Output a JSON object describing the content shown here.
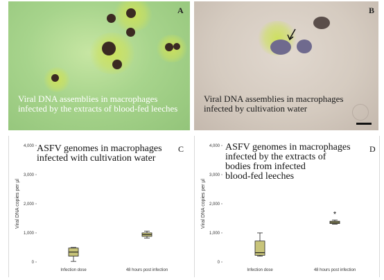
{
  "colors": {
    "box_fill": "#c8c47a",
    "cell_dark": "#3b2a22",
    "halo": "#d4e36a",
    "panel_a_bg": "#a7d48c",
    "panel_b_bg": "#d5cbc0"
  },
  "panels": {
    "A": {
      "letter": "A",
      "caption": "Viral DNA assemblies in macrophages\ninfected by the extracts of blood-fed leeches"
    },
    "B": {
      "letter": "B",
      "caption": "Viral DNA assemblies in macrophages\ninfected by cultivation water"
    }
  },
  "chart_data": [
    {
      "type": "box",
      "panel": "C",
      "letter": "C",
      "title": "ASFV genomes in macrophages\ninfected with cultivation water",
      "ylabel": "Viral DNA copies per µl",
      "ylim": [
        0,
        4000
      ],
      "yticks": [
        "0",
        "1,000",
        "2,000",
        "3,000",
        "4,000"
      ],
      "categories": [
        "Infection dose",
        "48 hours post infection"
      ],
      "boxes": [
        {
          "min": 20,
          "q1": 200,
          "median": 340,
          "q3": 480,
          "max": 500,
          "label": ""
        },
        {
          "min": 820,
          "q1": 880,
          "median": 940,
          "q3": 1000,
          "max": 1060,
          "label": ""
        }
      ]
    },
    {
      "type": "box",
      "panel": "D",
      "letter": "D",
      "title": "ASFV genomes in macrophages\ninfected by the extracts of\nbodies from infected\nblood-fed leeches",
      "ylabel": "Viral DNA copies per µl",
      "ylim": [
        0,
        4000
      ],
      "yticks": [
        "0",
        "1,000",
        "2,000",
        "3,000",
        "4,000"
      ],
      "categories": [
        "Infection dose",
        "48 hours post infection"
      ],
      "boxes": [
        {
          "min": 200,
          "q1": 230,
          "median": 320,
          "q3": 720,
          "max": 1000,
          "label": ""
        },
        {
          "min": 1300,
          "q1": 1320,
          "median": 1360,
          "q3": 1400,
          "max": 1440,
          "label": "*"
        }
      ]
    }
  ]
}
